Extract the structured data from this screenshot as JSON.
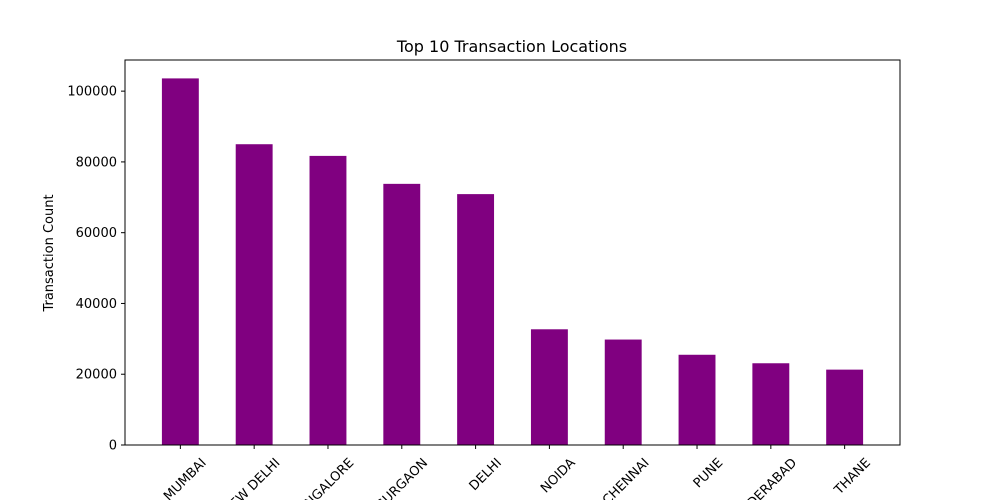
{
  "chart_data": {
    "type": "bar",
    "title": "Top 10 Transaction Locations",
    "xlabel": "",
    "ylabel": "Transaction Count",
    "categories": [
      "MUMBAI",
      "NEW DELHI",
      "BANGALORE",
      "GURGAON",
      "DELHI",
      "NOIDA",
      "CHENNAI",
      "PUNE",
      "HYDERABAD",
      "THANE"
    ],
    "values": [
      103600,
      85000,
      81700,
      73800,
      70900,
      32700,
      29800,
      25500,
      23100,
      21300
    ],
    "ylim": [
      0,
      108800
    ],
    "yticks": [
      0,
      20000,
      40000,
      60000,
      80000,
      100000
    ],
    "bar_color": "#800080",
    "grid": false
  }
}
